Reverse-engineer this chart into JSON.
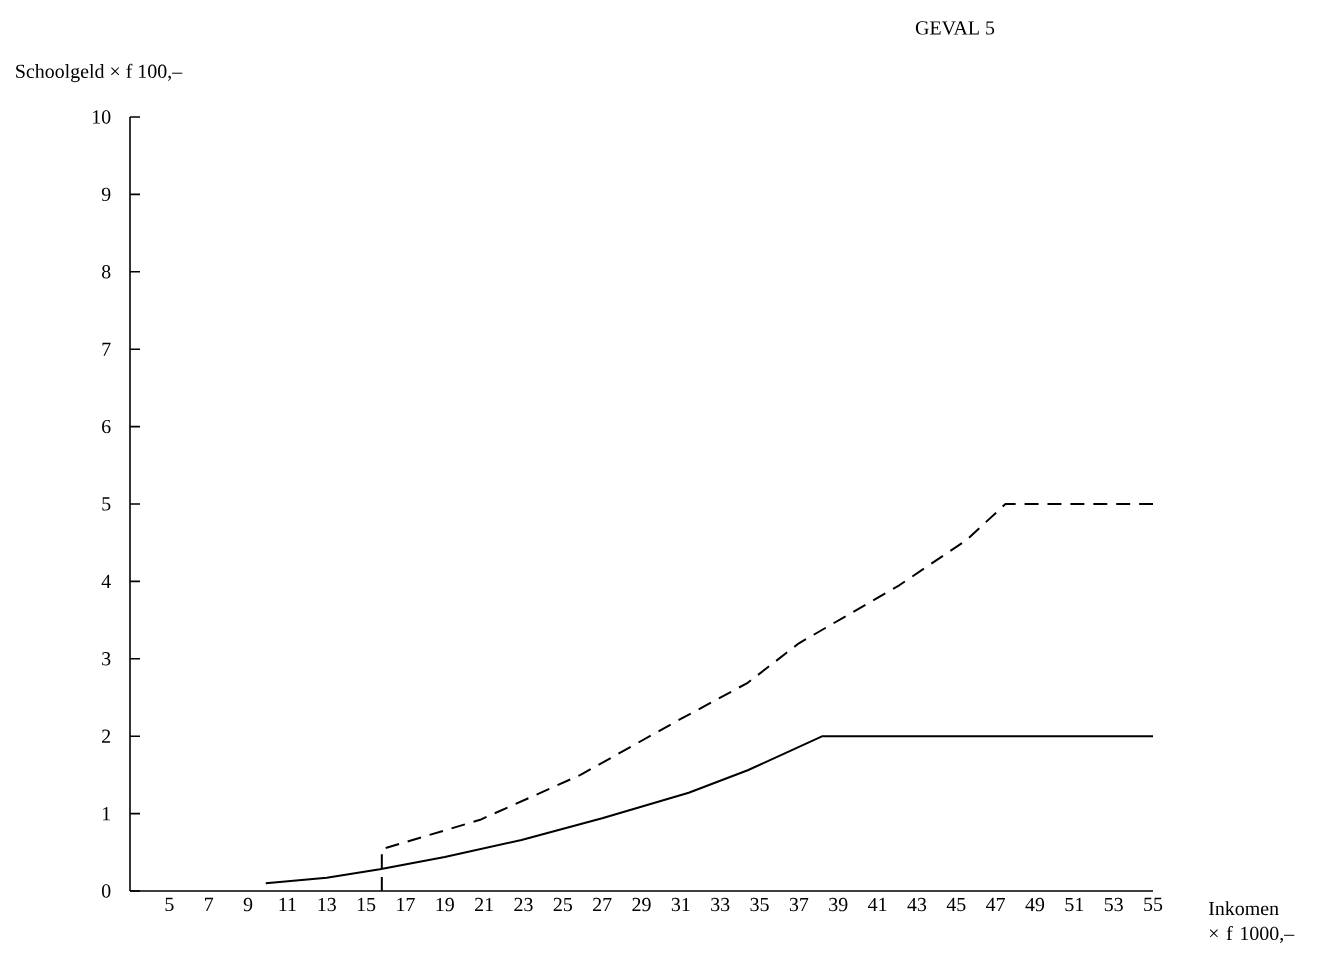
{
  "chart_data": {
    "type": "line",
    "title": "GEVAL 5",
    "ylabel": "Schoolgeld × f 100,–",
    "xlabel": "Inkomen × f 1000,–",
    "xlim": [
      3,
      55
    ],
    "ylim": [
      0,
      10
    ],
    "xticks": [
      5,
      7,
      9,
      11,
      13,
      15,
      17,
      19,
      21,
      23,
      25,
      27,
      29,
      31,
      33,
      35,
      37,
      39,
      41,
      43,
      45,
      47,
      49,
      51,
      53,
      55
    ],
    "yticks": [
      0,
      1,
      2,
      3,
      4,
      5,
      6,
      7,
      8,
      9,
      10
    ],
    "grid": false,
    "legend": false,
    "marker": "none",
    "series": [
      {
        "color": "#000000",
        "line_style": "solid",
        "x": [
          9.9,
          13,
          15.7,
          19,
          22.9,
          27,
          31.4,
          34.4,
          38.2,
          55
        ],
        "values": [
          0.1,
          0.17,
          0.28,
          0.44,
          0.66,
          0.94,
          1.27,
          1.56,
          2.0,
          2.0
        ]
      },
      {
        "color": "#000000",
        "line_style": "dashed",
        "x": [
          15.8,
          15.8,
          20.8,
          25.9,
          30.9,
          34.4,
          37,
          42.1,
          45.5,
          47.5,
          55
        ],
        "values": [
          0,
          0.54,
          0.92,
          1.5,
          2.21,
          2.69,
          3.2,
          3.95,
          4.53,
          5.0,
          5.0
        ]
      }
    ]
  }
}
